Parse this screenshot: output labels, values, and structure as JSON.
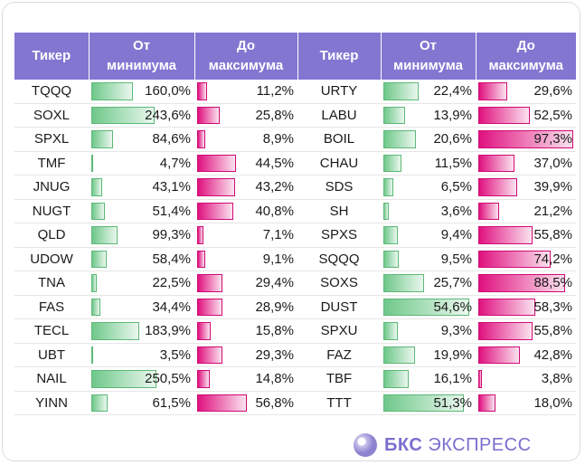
{
  "headers": {
    "ticker": "Тикер",
    "from_min": [
      "От",
      "минимума"
    ],
    "to_max": [
      "До",
      "максимума"
    ]
  },
  "left_rows": [
    {
      "ticker": "TQQQ",
      "from_min": "160,0%",
      "from_min_value": 160.0,
      "to_max": "11,2%",
      "to_max_value": 11.2
    },
    {
      "ticker": "SOXL",
      "from_min": "243,6%",
      "from_min_value": 243.6,
      "to_max": "25,8%",
      "to_max_value": 25.8
    },
    {
      "ticker": "SPXL",
      "from_min": "84,6%",
      "from_min_value": 84.6,
      "to_max": "8,9%",
      "to_max_value": 8.9
    },
    {
      "ticker": "TMF",
      "from_min": "4,7%",
      "from_min_value": 4.7,
      "to_max": "44,5%",
      "to_max_value": 44.5
    },
    {
      "ticker": "JNUG",
      "from_min": "43,1%",
      "from_min_value": 43.1,
      "to_max": "43,2%",
      "to_max_value": 43.2
    },
    {
      "ticker": "NUGT",
      "from_min": "51,4%",
      "from_min_value": 51.4,
      "to_max": "40,8%",
      "to_max_value": 40.8
    },
    {
      "ticker": "QLD",
      "from_min": "99,3%",
      "from_min_value": 99.3,
      "to_max": "7,1%",
      "to_max_value": 7.1
    },
    {
      "ticker": "UDOW",
      "from_min": "58,4%",
      "from_min_value": 58.4,
      "to_max": "9,1%",
      "to_max_value": 9.1
    },
    {
      "ticker": "TNA",
      "from_min": "22,5%",
      "from_min_value": 22.5,
      "to_max": "29,4%",
      "to_max_value": 29.4
    },
    {
      "ticker": "FAS",
      "from_min": "34,4%",
      "from_min_value": 34.4,
      "to_max": "28,9%",
      "to_max_value": 28.9
    },
    {
      "ticker": "TECL",
      "from_min": "183,9%",
      "from_min_value": 183.9,
      "to_max": "15,8%",
      "to_max_value": 15.8
    },
    {
      "ticker": "UBT",
      "from_min": "3,5%",
      "from_min_value": 3.5,
      "to_max": "29,3%",
      "to_max_value": 29.3
    },
    {
      "ticker": "NAIL",
      "from_min": "250,5%",
      "from_min_value": 250.5,
      "to_max": "14,8%",
      "to_max_value": 14.8
    },
    {
      "ticker": "YINN",
      "from_min": "61,5%",
      "from_min_value": 61.5,
      "to_max": "56,8%",
      "to_max_value": 56.8
    }
  ],
  "right_rows": [
    {
      "ticker": "URTY",
      "from_min": "22,4%",
      "from_min_value": 22.4,
      "to_max": "29,6%",
      "to_max_value": 29.6
    },
    {
      "ticker": "LABU",
      "from_min": "13,9%",
      "from_min_value": 13.9,
      "to_max": "52,5%",
      "to_max_value": 52.5
    },
    {
      "ticker": "BOIL",
      "from_min": "20,6%",
      "from_min_value": 20.6,
      "to_max": "97,3%",
      "to_max_value": 97.3
    },
    {
      "ticker": "CHAU",
      "from_min": "11,5%",
      "from_min_value": 11.5,
      "to_max": "37,0%",
      "to_max_value": 37.0
    },
    {
      "ticker": "SDS",
      "from_min": "6,5%",
      "from_min_value": 6.5,
      "to_max": "39,9%",
      "to_max_value": 39.9
    },
    {
      "ticker": "SH",
      "from_min": "3,6%",
      "from_min_value": 3.6,
      "to_max": "21,2%",
      "to_max_value": 21.2
    },
    {
      "ticker": "SPXS",
      "from_min": "9,4%",
      "from_min_value": 9.4,
      "to_max": "55,8%",
      "to_max_value": 55.8
    },
    {
      "ticker": "SQQQ",
      "from_min": "9,5%",
      "from_min_value": 9.5,
      "to_max": "74,2%",
      "to_max_value": 74.2
    },
    {
      "ticker": "SOXS",
      "from_min": "25,7%",
      "from_min_value": 25.7,
      "to_max": "88,5%",
      "to_max_value": 88.5
    },
    {
      "ticker": "DUST",
      "from_min": "54,6%",
      "from_min_value": 54.6,
      "to_max": "58,3%",
      "to_max_value": 58.3
    },
    {
      "ticker": "SPXU",
      "from_min": "9,3%",
      "from_min_value": 9.3,
      "to_max": "55,8%",
      "to_max_value": 55.8
    },
    {
      "ticker": "FAZ",
      "from_min": "19,9%",
      "from_min_value": 19.9,
      "to_max": "42,8%",
      "to_max_value": 42.8
    },
    {
      "ticker": "TBF",
      "from_min": "16,1%",
      "from_min_value": 16.1,
      "to_max": "3,8%",
      "to_max_value": 3.8
    },
    {
      "ticker": "TTT",
      "from_min": "51,3%",
      "from_min_value": 51.3,
      "to_max": "18,0%",
      "to_max_value": 18.0
    }
  ],
  "scale": {
    "left_from_min_max": 250.5,
    "left_to_max_max": 56.8,
    "right_from_min_max": 54.6,
    "right_to_max_max": 97.3
  },
  "colors": {
    "header_bg": "#8276d1",
    "green_bar": "#6fc88a",
    "pink_bar": "#e0117f",
    "brand": "#7a6fcf"
  },
  "logo": {
    "bold": "БКС",
    "text": "ЭКСПРЕСС",
    "icon": "bcs-circle-icon"
  }
}
